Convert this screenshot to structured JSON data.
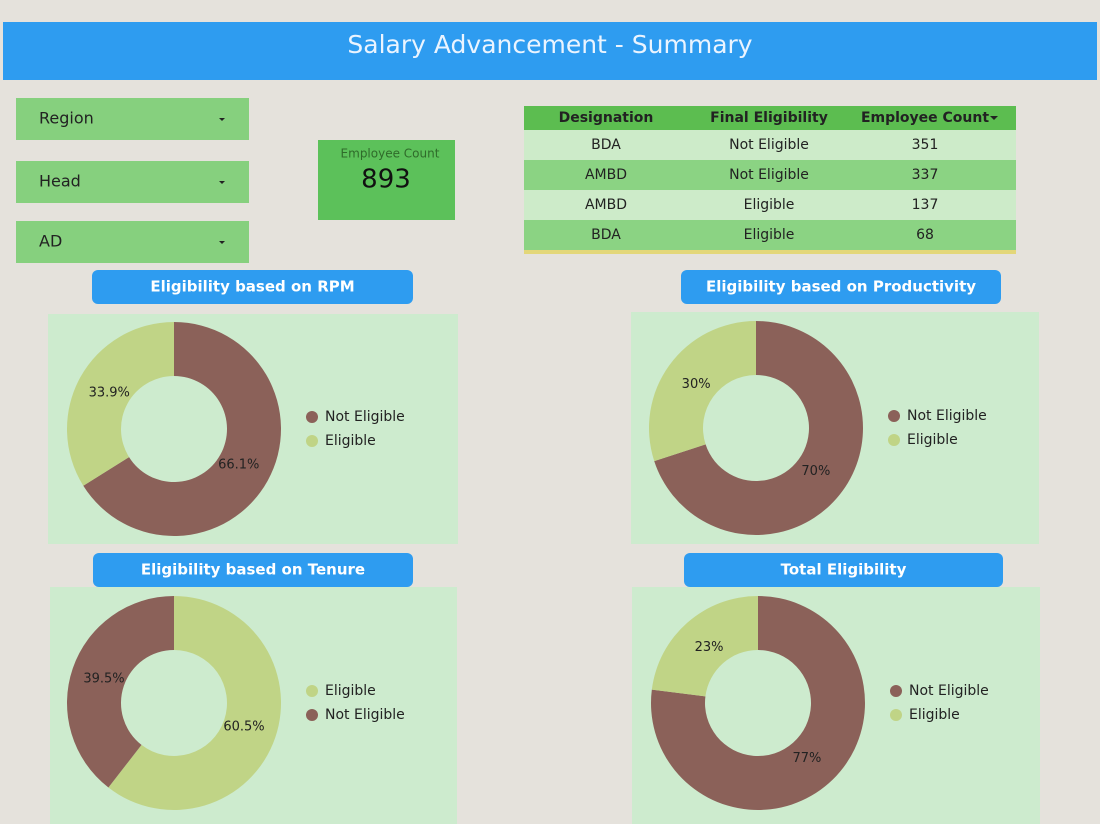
{
  "header": {
    "title": "Salary Advancement - Summary"
  },
  "filters": [
    "Region",
    "Head",
    "AD"
  ],
  "scorecard": {
    "label": "Employee Count",
    "value": 893
  },
  "table": {
    "columns": [
      "Designation",
      "Final Eligibility",
      "Employee Count"
    ],
    "rows": [
      [
        "BDA",
        "Not Eligible",
        351
      ],
      [
        "AMBD",
        "Not Eligible",
        337
      ],
      [
        "AMBD",
        "Eligible",
        137
      ],
      [
        "BDA",
        "Eligible",
        68
      ]
    ]
  },
  "chart_data": [
    {
      "type": "pie",
      "title": "Eligibility based on RPM",
      "categories": [
        "Not Eligible",
        "Eligible"
      ],
      "values": [
        66.1,
        33.9
      ],
      "value_labels": [
        "66.1%",
        "33.9%"
      ],
      "colors": [
        "#8b6159",
        "#c0d486"
      ]
    },
    {
      "type": "pie",
      "title": "Eligibility based on Productivity",
      "categories": [
        "Not Eligible",
        "Eligible"
      ],
      "values": [
        70,
        30
      ],
      "value_labels": [
        "70%",
        "30%"
      ],
      "colors": [
        "#8b6159",
        "#c0d486"
      ]
    },
    {
      "type": "pie",
      "title": "Eligibility based on Tenure",
      "categories": [
        "Eligible",
        "Not Eligible"
      ],
      "values": [
        60.5,
        39.5
      ],
      "value_labels": [
        "60.5%",
        "39.5%"
      ],
      "colors": [
        "#c0d486",
        "#8b6159"
      ]
    },
    {
      "type": "pie",
      "title": "Total Eligibility",
      "categories": [
        "Not Eligible",
        "Eligible"
      ],
      "values": [
        77,
        23
      ],
      "value_labels": [
        "77%",
        "23%"
      ],
      "colors": [
        "#8b6159",
        "#c0d486"
      ]
    }
  ]
}
